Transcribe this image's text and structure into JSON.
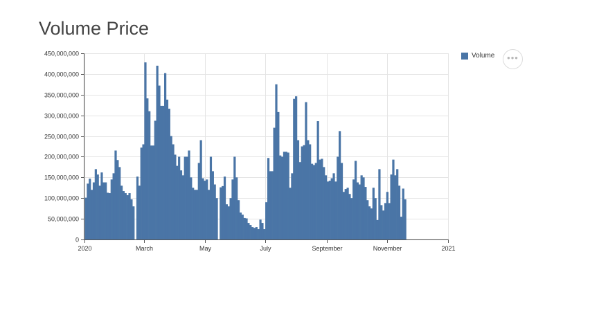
{
  "page": {
    "title": "Volume Price",
    "more_icon": "ellipsis-icon",
    "more_glyph": "•••"
  },
  "colors": {
    "bar": "#4a75a6",
    "grid": "#e4e4e4",
    "axis": "#555555",
    "text": "#333333"
  },
  "chart_data": {
    "type": "bar",
    "title": "Volume Price",
    "xlabel": "",
    "ylabel": "",
    "ylim": [
      0,
      450000000
    ],
    "yticks": [
      0,
      50000000,
      100000000,
      150000000,
      200000000,
      250000000,
      300000000,
      350000000,
      400000000,
      450000000
    ],
    "ytick_labels": [
      "0",
      "50,000,000",
      "100,000,000",
      "150,000,000",
      "200,000,000",
      "250,000,000",
      "300,000,000",
      "350,000,000",
      "400,000,000",
      "450,000,000"
    ],
    "x_start": "2019-12-31",
    "x_end": "2021-01-02",
    "xticks": [
      {
        "date": "2020-01-01",
        "label": "2020"
      },
      {
        "date": "2020-03-01",
        "label": "March"
      },
      {
        "date": "2020-05-01",
        "label": "May"
      },
      {
        "date": "2020-07-01",
        "label": "July"
      },
      {
        "date": "2020-09-01",
        "label": "September"
      },
      {
        "date": "2020-11-01",
        "label": "November"
      },
      {
        "date": "2021-01-01",
        "label": "2021"
      }
    ],
    "grid": true,
    "legend": "top-right",
    "series": [
      {
        "name": "Volume",
        "start_date": "2020-01-01",
        "values": [
          101000000,
          101000000,
          135000000,
          135000000,
          147000000,
          147000000,
          120000000,
          120000000,
          138000000,
          138000000,
          170000000,
          170000000,
          157000000,
          157000000,
          130000000,
          130000000,
          162000000,
          162000000,
          138000000,
          138000000,
          138000000,
          138000000,
          113000000,
          113000000,
          112000000,
          112000000,
          145000000,
          145000000,
          160000000,
          160000000,
          215000000,
          215000000,
          192000000,
          192000000,
          175000000,
          175000000,
          130000000,
          130000000,
          117000000,
          117000000,
          112000000,
          112000000,
          107000000,
          107000000,
          112000000,
          112000000,
          97000000,
          97000000,
          80000000,
          80000000,
          0,
          0,
          152000000,
          152000000,
          130000000,
          130000000,
          222000000,
          222000000,
          230000000,
          230000000,
          428000000,
          428000000,
          341000000,
          341000000,
          310000000,
          310000000,
          227000000,
          227000000,
          227000000,
          227000000,
          287000000,
          287000000,
          420000000,
          420000000,
          372000000,
          372000000,
          323000000,
          323000000,
          323000000,
          323000000,
          402000000,
          402000000,
          338000000,
          338000000,
          316000000,
          316000000,
          250000000,
          250000000,
          230000000,
          230000000,
          205000000,
          205000000,
          178000000,
          178000000,
          200000000,
          200000000,
          167000000,
          167000000,
          155000000,
          155000000,
          200000000,
          200000000,
          200000000,
          200000000,
          215000000,
          215000000,
          150000000,
          150000000,
          125000000,
          125000000,
          120000000,
          120000000,
          120000000,
          120000000,
          185000000,
          185000000,
          240000000,
          240000000,
          148000000,
          148000000,
          142000000,
          142000000,
          145000000,
          145000000,
          120000000,
          120000000,
          200000000,
          200000000,
          165000000,
          165000000,
          133000000,
          133000000,
          100000000,
          100000000,
          0,
          0,
          126000000,
          126000000,
          129000000,
          129000000,
          152000000,
          152000000,
          85000000,
          85000000,
          80000000,
          80000000,
          100000000,
          100000000,
          145000000,
          145000000,
          200000000,
          200000000,
          150000000,
          150000000,
          95000000,
          95000000,
          65000000,
          65000000,
          60000000,
          60000000,
          52000000,
          52000000,
          51000000,
          51000000,
          40000000,
          40000000,
          35000000,
          35000000,
          30000000,
          30000000,
          28000000,
          28000000,
          30000000,
          30000000,
          25000000,
          25000000,
          48000000,
          48000000,
          40000000,
          40000000,
          25000000,
          25000000,
          90000000,
          90000000,
          197000000,
          197000000,
          165000000,
          165000000,
          165000000,
          165000000,
          270000000,
          270000000,
          375000000,
          375000000,
          308000000,
          308000000,
          203000000,
          203000000,
          200000000,
          200000000,
          212000000,
          212000000,
          212000000,
          212000000,
          210000000,
          210000000,
          125000000,
          125000000,
          160000000,
          160000000,
          340000000,
          340000000,
          346000000,
          346000000,
          240000000,
          240000000,
          187000000,
          187000000,
          225000000,
          225000000,
          228000000,
          228000000,
          332000000,
          332000000,
          240000000,
          240000000,
          230000000,
          230000000,
          183000000,
          183000000,
          180000000,
          180000000,
          185000000,
          185000000,
          286000000,
          286000000,
          193000000,
          193000000,
          195000000,
          195000000,
          175000000,
          175000000,
          155000000,
          155000000,
          140000000,
          140000000,
          142000000,
          142000000,
          148000000,
          148000000,
          160000000,
          160000000,
          140000000,
          140000000,
          200000000,
          200000000,
          262000000,
          262000000,
          185000000,
          185000000,
          115000000,
          115000000,
          122000000,
          122000000,
          125000000,
          125000000,
          110000000,
          110000000,
          100000000,
          100000000,
          145000000,
          145000000,
          190000000,
          190000000,
          138000000,
          138000000,
          133000000,
          133000000,
          155000000,
          155000000,
          150000000,
          150000000,
          127000000,
          127000000,
          95000000,
          95000000,
          80000000,
          80000000,
          75000000,
          75000000,
          125000000,
          125000000,
          100000000,
          100000000,
          47000000,
          47000000,
          170000000,
          170000000,
          83000000,
          83000000,
          70000000,
          70000000,
          88000000,
          88000000,
          115000000,
          115000000,
          88000000,
          88000000,
          157000000,
          157000000,
          193000000,
          193000000,
          155000000,
          155000000,
          170000000,
          170000000,
          130000000,
          130000000,
          55000000,
          55000000,
          123000000,
          123000000,
          97000000,
          97000000
        ]
      }
    ]
  }
}
